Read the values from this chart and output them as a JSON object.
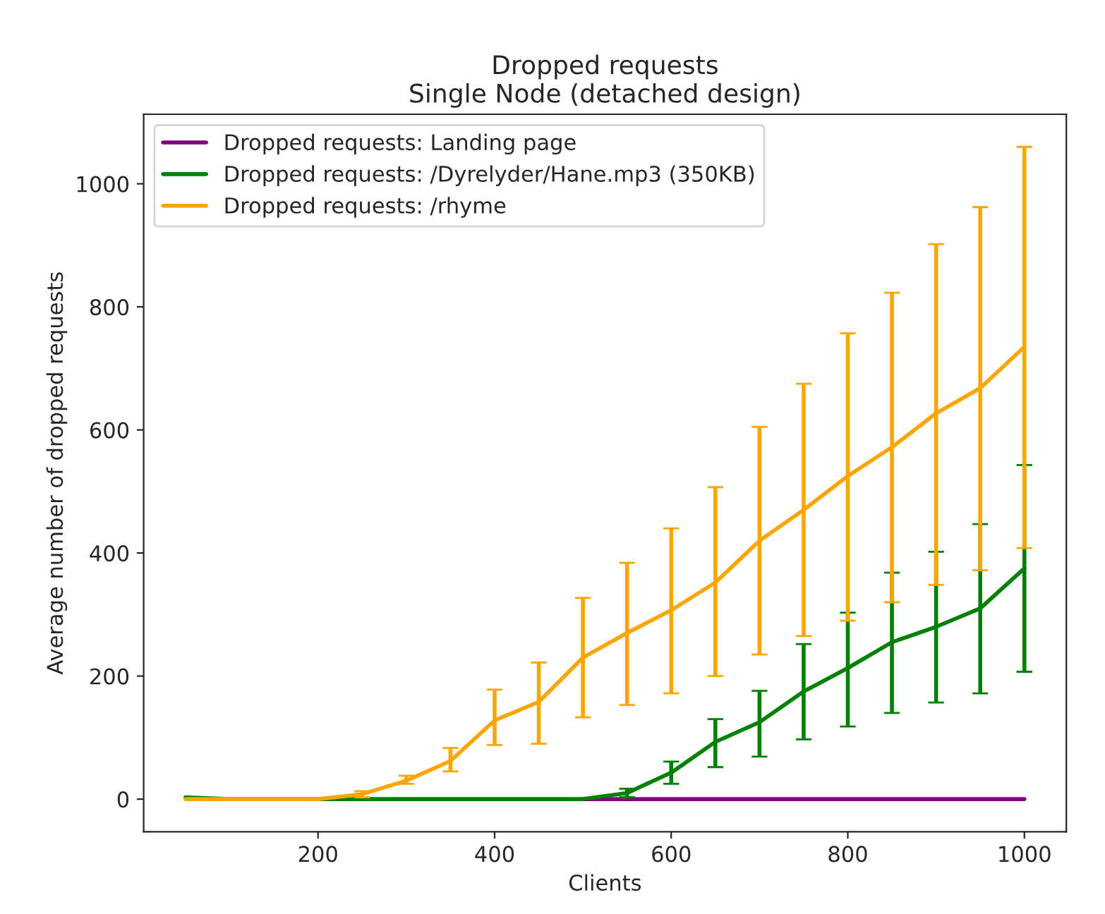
{
  "chart_data": {
    "type": "line",
    "title": "Dropped requests",
    "subtitle": "Single Node (detached design)",
    "xlabel": "Clients",
    "ylabel": "Average number of dropped requests",
    "x": [
      50,
      100,
      150,
      200,
      250,
      300,
      350,
      400,
      450,
      500,
      550,
      600,
      650,
      700,
      750,
      800,
      850,
      900,
      950,
      1000
    ],
    "series": [
      {
        "name": "Dropped requests: Landing page",
        "color": "#800080",
        "values": [
          null,
          null,
          null,
          null,
          null,
          null,
          null,
          null,
          null,
          0,
          0,
          0,
          0,
          0,
          0,
          0,
          0,
          0,
          0,
          0
        ]
      },
      {
        "name": "Dropped requests: /Dyrelyder/Hane.mp3 (350KB)",
        "color": "#008000",
        "values": [
          3,
          0,
          0,
          0,
          0,
          0,
          0,
          0,
          0,
          0,
          10,
          43,
          93,
          125,
          175,
          213,
          255,
          280,
          310,
          375
        ],
        "errors": [
          null,
          null,
          null,
          null,
          null,
          null,
          null,
          null,
          null,
          null,
          [
            3,
            17
          ],
          [
            25,
            61
          ],
          [
            52,
            130
          ],
          [
            69,
            176
          ],
          [
            97,
            252
          ],
          [
            118,
            303
          ],
          [
            140,
            368
          ],
          [
            157,
            402
          ],
          [
            172,
            447
          ],
          [
            207,
            543
          ]
        ]
      },
      {
        "name": "Dropped requests: /rhyme",
        "color": "#ffa500",
        "values": [
          0,
          0,
          0,
          0,
          8,
          30,
          62,
          128,
          158,
          230,
          270,
          307,
          352,
          420,
          470,
          525,
          572,
          627,
          668,
          735
        ],
        "errors": [
          null,
          null,
          null,
          null,
          [
            3,
            13
          ],
          [
            25,
            38
          ],
          [
            45,
            83
          ],
          [
            88,
            178
          ],
          [
            90,
            222
          ],
          [
            133,
            327
          ],
          [
            153,
            384
          ],
          [
            172,
            440
          ],
          [
            200,
            507
          ],
          [
            235,
            605
          ],
          [
            265,
            675
          ],
          [
            290,
            757
          ],
          [
            320,
            823
          ],
          [
            348,
            902
          ],
          [
            372,
            962
          ],
          [
            408,
            1060
          ]
        ]
      }
    ],
    "xlim": [
      2.5,
      1047.5
    ],
    "ylim": [
      -53,
      1113
    ],
    "xticks": [
      200,
      400,
      600,
      800,
      1000
    ],
    "yticks": [
      0,
      200,
      400,
      600,
      800,
      1000
    ],
    "legend": "top left",
    "grid": false,
    "marker": "none",
    "line_style": "solid"
  }
}
